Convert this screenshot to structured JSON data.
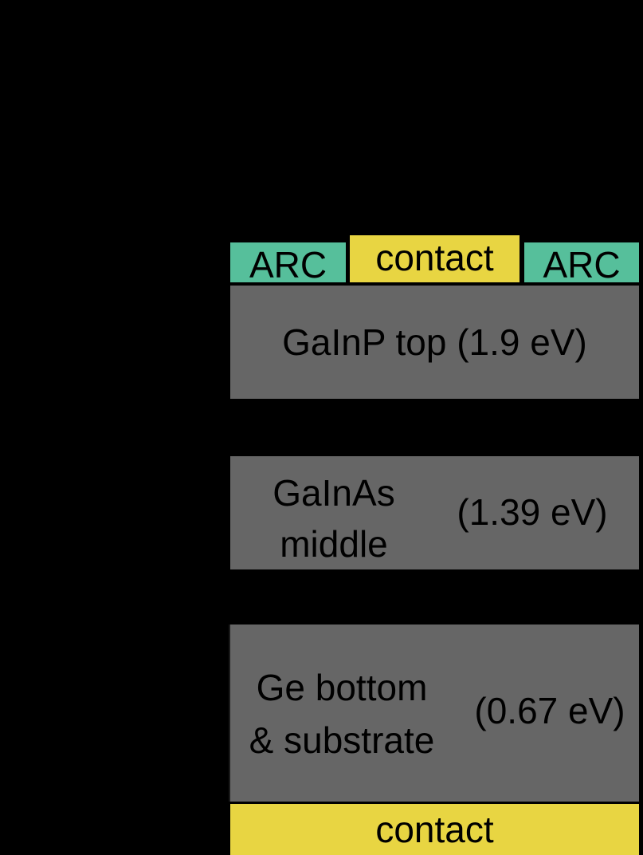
{
  "colors": {
    "background": "#000000",
    "arc": "#56bf9b",
    "contact": "#e8d542",
    "cell": "#666666",
    "text": "#000000"
  },
  "layers": {
    "arc_left": "ARC",
    "contact_top": "contact",
    "arc_right": "ARC",
    "top_cell": "GaInP top (1.9 eV)",
    "middle_cell": {
      "name_line1": "GaInAs",
      "name_line2": "middle",
      "gap": "(1.39 eV)"
    },
    "bottom_cell": {
      "name_line1": "Ge bottom",
      "name_line2": "& substrate",
      "gap": "(0.67 eV)"
    },
    "contact_bottom": "contact"
  }
}
